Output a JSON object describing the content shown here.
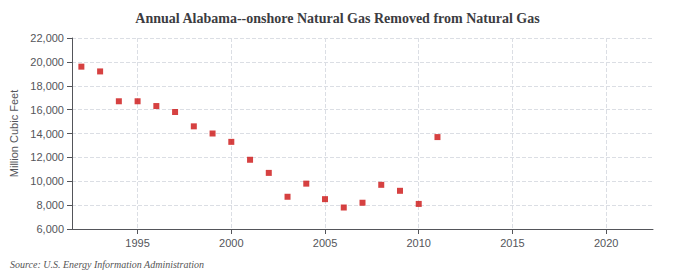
{
  "chart_data": {
    "type": "scatter",
    "title": "Annual Alabama--onshore Natural Gas Removed from Natural Gas",
    "ylabel": "Million Cubic Feet",
    "source": "Source: U.S. Energy Information Administration",
    "x": [
      1992,
      1993,
      1994,
      1995,
      1996,
      1997,
      1998,
      1999,
      2000,
      2001,
      2002,
      2003,
      2004,
      2005,
      2006,
      2007,
      2008,
      2009,
      2010,
      2011
    ],
    "values": [
      19600,
      19200,
      16700,
      16700,
      16300,
      15800,
      14600,
      14000,
      13300,
      11800,
      10700,
      8700,
      9800,
      8500,
      7800,
      8200,
      9700,
      9200,
      8100,
      13700
    ],
    "color": "#cc1111",
    "marker": "square",
    "xlim": [
      1991.5,
      2022.5
    ],
    "xticks": [
      1995,
      2000,
      2005,
      2010,
      2015,
      2020
    ],
    "ylim": [
      6000,
      22000
    ],
    "yticks": [
      {
        "value": 6000,
        "label": "6,000"
      },
      {
        "value": 8000,
        "label": "8,000"
      },
      {
        "value": 10000,
        "label": "10,000"
      },
      {
        "value": 12000,
        "label": "12,000"
      },
      {
        "value": 14000,
        "label": "14,000"
      },
      {
        "value": 16000,
        "label": "16,000"
      },
      {
        "value": 18000,
        "label": "18,000"
      },
      {
        "value": 20000,
        "label": "20,000"
      },
      {
        "value": 22000,
        "label": "22,000"
      }
    ],
    "grid": true
  }
}
